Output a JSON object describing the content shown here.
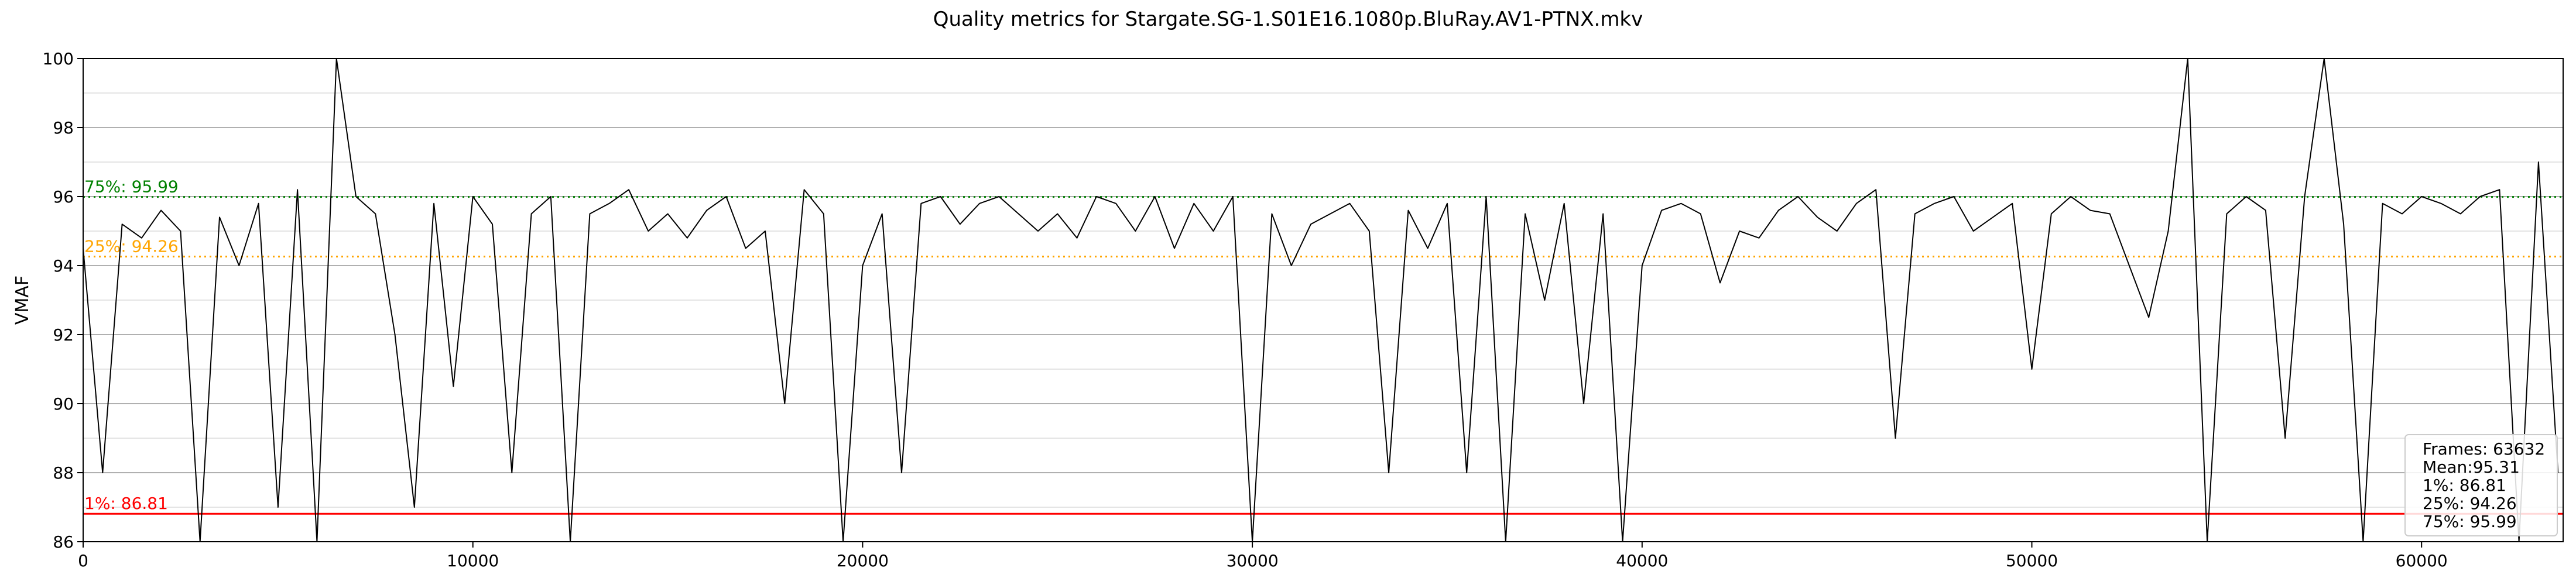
{
  "chart_data": {
    "type": "line",
    "title": "Quality metrics for Stargate.SG-1.S01E16.1080p.BluRay.AV1-PTNX.mkv",
    "xlabel": "",
    "ylabel": "VMAF",
    "xlim": [
      0,
      63632
    ],
    "ylim": [
      86,
      100
    ],
    "x_ticks": [
      0,
      10000,
      20000,
      30000,
      40000,
      50000,
      60000
    ],
    "y_ticks": [
      86,
      88,
      90,
      92,
      94,
      96,
      98,
      100
    ],
    "grid": true,
    "series": [
      {
        "color": "#000000",
        "x": [
          0,
          500,
          1000,
          1500,
          2000,
          2500,
          3000,
          3500,
          4000,
          4500,
          5000,
          5500,
          6000,
          6500,
          7000,
          7500,
          8000,
          8500,
          9000,
          9500,
          10000,
          10500,
          11000,
          11500,
          12000,
          12500,
          13000,
          13500,
          14000,
          14500,
          15000,
          15500,
          16000,
          16500,
          17000,
          17500,
          18000,
          18500,
          19000,
          19500,
          20000,
          20500,
          21000,
          21500,
          22000,
          22500,
          23000,
          23500,
          24000,
          24500,
          25000,
          25500,
          26000,
          26500,
          27000,
          27500,
          28000,
          28500,
          29000,
          29500,
          30000,
          30500,
          31000,
          31500,
          32000,
          32500,
          33000,
          33500,
          34000,
          34500,
          35000,
          35500,
          36000,
          36500,
          37000,
          37500,
          38000,
          38500,
          39000,
          39500,
          40000,
          40500,
          41000,
          41500,
          42000,
          42500,
          43000,
          43500,
          44000,
          44500,
          45000,
          45500,
          46000,
          46500,
          47000,
          47500,
          48000,
          48500,
          49000,
          49500,
          50000,
          50500,
          51000,
          51500,
          52000,
          52500,
          53000,
          53500,
          54000,
          54500,
          55000,
          55500,
          56000,
          56500,
          57000,
          57500,
          58000,
          58500,
          59000,
          59500,
          60000,
          60500,
          61000,
          61500,
          62000,
          62500,
          63000,
          63500
        ],
        "y": [
          94.5,
          88.0,
          95.2,
          94.8,
          95.6,
          95.0,
          86.0,
          95.4,
          94.0,
          95.8,
          87.0,
          96.2,
          86.0,
          100.0,
          96.0,
          95.5,
          92.0,
          87.0,
          95.8,
          90.5,
          96.0,
          95.2,
          88.0,
          95.5,
          96.0,
          86.0,
          95.5,
          95.8,
          96.2,
          95.0,
          95.5,
          94.8,
          95.6,
          96.0,
          94.5,
          95.0,
          90.0,
          96.2,
          95.5,
          86.0,
          94.0,
          95.5,
          88.0,
          95.8,
          96.0,
          95.2,
          95.8,
          96.0,
          95.5,
          95.0,
          95.5,
          94.8,
          96.0,
          95.8,
          95.0,
          96.0,
          94.5,
          95.8,
          95.0,
          96.0,
          86.0,
          95.5,
          94.0,
          95.2,
          95.5,
          95.8,
          95.0,
          88.0,
          95.6,
          94.5,
          95.8,
          88.0,
          96.0,
          86.0,
          95.5,
          93.0,
          95.8,
          90.0,
          95.5,
          86.0,
          94.0,
          95.6,
          95.8,
          95.5,
          93.5,
          95.0,
          94.8,
          95.6,
          96.0,
          95.4,
          95.0,
          95.8,
          96.2,
          89.0,
          95.5,
          95.8,
          96.0,
          95.0,
          95.4,
          95.8,
          91.0,
          95.5,
          96.0,
          95.6,
          95.5,
          94.0,
          92.5,
          95.0,
          100.0,
          86.0,
          95.5,
          96.0,
          95.6,
          89.0,
          96.0,
          100.0,
          95.2,
          86.0,
          95.8,
          95.5,
          96.0,
          95.8,
          95.5,
          96.0,
          96.2,
          86.0,
          97.0,
          88.0
        ]
      }
    ],
    "reference_lines": [
      {
        "label": "1%: 86.81",
        "value": 86.81,
        "color": "#ff0000",
        "style": "solid"
      },
      {
        "label": "25%: 94.26",
        "value": 94.26,
        "color": "#ffa500",
        "style": "dotted"
      },
      {
        "label": "Mean: 95.31",
        "value": 95.31,
        "color": "#ffffff",
        "style": "dotted"
      },
      {
        "label": "75%: 95.99",
        "value": 95.99,
        "color": "#008000",
        "style": "dotted"
      }
    ],
    "legend": {
      "placement": "bottom-right",
      "lines": [
        "Frames: 63632",
        "Mean:95.31",
        "1%: 86.81",
        "25%: 94.26",
        "75%: 95.99"
      ]
    }
  }
}
